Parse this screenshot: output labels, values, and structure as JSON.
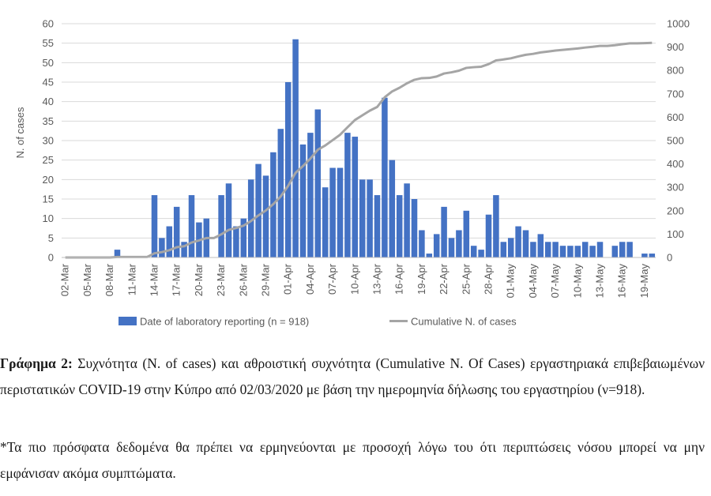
{
  "chart_data": {
    "type": "bar+line",
    "title": "",
    "ylabel": "N. of cases",
    "ylim": [
      0,
      60
    ],
    "y_ticks": [
      0,
      5,
      10,
      15,
      20,
      25,
      30,
      35,
      40,
      45,
      50,
      55,
      60
    ],
    "y2lim": [
      0,
      1000
    ],
    "y2_ticks": [
      0,
      100,
      200,
      300,
      400,
      500,
      600,
      700,
      800,
      900,
      1000
    ],
    "x_tick_labels": [
      "02-Mar",
      "05-Mar",
      "08-Mar",
      "11-Mar",
      "14-Mar",
      "17-Mar",
      "20-Mar",
      "23-Mar",
      "26-Mar",
      "29-Mar",
      "01-Apr",
      "04-Apr",
      "07-Apr",
      "10-Apr",
      "13-Apr",
      "16-Apr",
      "19-Apr",
      "22-Apr",
      "25-Apr",
      "28-Apr",
      "01-May",
      "04-May",
      "07-May",
      "10-May",
      "13-May",
      "16-May",
      "19-May"
    ],
    "x_dates": [
      "02-Mar",
      "03-Mar",
      "04-Mar",
      "05-Mar",
      "06-Mar",
      "07-Mar",
      "08-Mar",
      "09-Mar",
      "10-Mar",
      "11-Mar",
      "12-Mar",
      "13-Mar",
      "14-Mar",
      "15-Mar",
      "16-Mar",
      "17-Mar",
      "18-Mar",
      "19-Mar",
      "20-Mar",
      "21-Mar",
      "22-Mar",
      "23-Mar",
      "24-Mar",
      "25-Mar",
      "26-Mar",
      "27-Mar",
      "28-Mar",
      "29-Mar",
      "30-Mar",
      "31-Mar",
      "01-Apr",
      "02-Apr",
      "03-Apr",
      "04-Apr",
      "05-Apr",
      "06-Apr",
      "07-Apr",
      "08-Apr",
      "09-Apr",
      "10-Apr",
      "11-Apr",
      "12-Apr",
      "13-Apr",
      "14-Apr",
      "15-Apr",
      "16-Apr",
      "17-Apr",
      "18-Apr",
      "19-Apr",
      "20-Apr",
      "21-Apr",
      "22-Apr",
      "23-Apr",
      "24-Apr",
      "25-Apr",
      "26-Apr",
      "27-Apr",
      "28-Apr",
      "29-Apr",
      "30-Apr",
      "01-May",
      "02-May",
      "03-May",
      "04-May",
      "05-May",
      "06-May",
      "07-May",
      "08-May",
      "09-May",
      "10-May",
      "11-May",
      "12-May",
      "13-May",
      "14-May",
      "15-May",
      "16-May",
      "17-May",
      "18-May",
      "19-May",
      "20-May"
    ],
    "series": [
      {
        "name": "Date of laboratory reporting (n = 918)",
        "kind": "bar",
        "axis": "left",
        "color": "#4472C4",
        "values": [
          0,
          0,
          0,
          0,
          0,
          0,
          0,
          2,
          0,
          0,
          0,
          0,
          16,
          5,
          8,
          13,
          4,
          16,
          9,
          10,
          0,
          16,
          19,
          8,
          10,
          20,
          24,
          21,
          27,
          33,
          45,
          56,
          29,
          32,
          38,
          18,
          23,
          23,
          32,
          31,
          20,
          20,
          16,
          41,
          25,
          16,
          19,
          15,
          7,
          1,
          6,
          13,
          5,
          7,
          12,
          3,
          2,
          11,
          16,
          4,
          5,
          8,
          7,
          4,
          6,
          4,
          4,
          3,
          3,
          3,
          4,
          3,
          4,
          0,
          3,
          4,
          4,
          0,
          1,
          1
        ]
      },
      {
        "name": "Cumulative N. of cases",
        "kind": "line",
        "axis": "right",
        "color": "#A5A5A5",
        "values": [
          0,
          0,
          0,
          0,
          0,
          0,
          0,
          2,
          2,
          2,
          2,
          2,
          18,
          23,
          31,
          44,
          48,
          64,
          73,
          83,
          83,
          99,
          118,
          126,
          136,
          156,
          180,
          201,
          228,
          261,
          306,
          362,
          391,
          423,
          461,
          479,
          502,
          525,
          557,
          588,
          608,
          628,
          644,
          685,
          710,
          726,
          745,
          760,
          767,
          768,
          774,
          787,
          792,
          799,
          811,
          814,
          816,
          827,
          843,
          847,
          852,
          860,
          867,
          871,
          877,
          881,
          885,
          888,
          891,
          894,
          898,
          901,
          905,
          905,
          908,
          912,
          916,
          916,
          917,
          918
        ]
      }
    ],
    "legend": "bottom"
  },
  "caption": {
    "label": "Γράφημα 2:",
    "text": "Συχνότητα (N. of cases) και αθροιστική συχνότητα (Cumulative N. Of Cases) εργαστηριακά επιβεβαιωμένων περιστατικών COVID-19 στην Κύπρο από 02/03/2020 με βάση την ημερομηνία δήλωσης του εργαστηρίου (ν=918).",
    "note": "*Τα πιο πρόσφατα δεδομένα θα πρέπει να ερμηνεύονται με προσοχή λόγω του ότι περιπτώσεις νόσου μπορεί να μην εμφάνισαν ακόμα συμπτώματα."
  }
}
